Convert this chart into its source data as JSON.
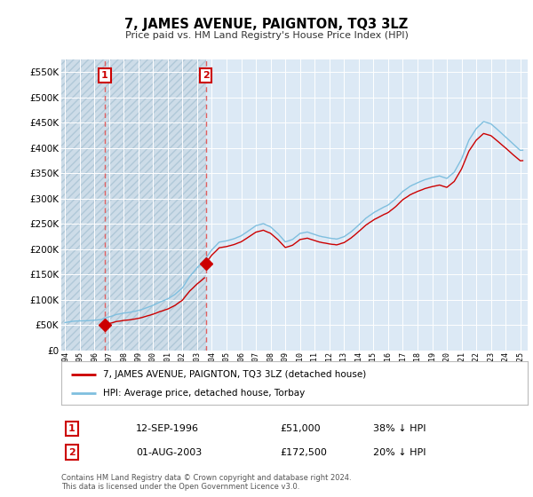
{
  "title": "7, JAMES AVENUE, PAIGNTON, TQ3 3LZ",
  "subtitle": "Price paid vs. HM Land Registry's House Price Index (HPI)",
  "background_color": "#ffffff",
  "plot_bg_color": "#dce9f5",
  "grid_color": "#ffffff",
  "ylim": [
    0,
    575000
  ],
  "yticks": [
    0,
    50000,
    100000,
    150000,
    200000,
    250000,
    300000,
    350000,
    400000,
    450000,
    500000,
    550000
  ],
  "ytick_labels": [
    "£0",
    "£50K",
    "£100K",
    "£150K",
    "£200K",
    "£250K",
    "£300K",
    "£350K",
    "£400K",
    "£450K",
    "£500K",
    "£550K"
  ],
  "sale1_date": 1996.71,
  "sale1_price": 51000,
  "sale2_date": 2003.58,
  "sale2_price": 172500,
  "legend_line1": "7, JAMES AVENUE, PAIGNTON, TQ3 3LZ (detached house)",
  "legend_line2": "HPI: Average price, detached house, Torbay",
  "annotation1_date": "12-SEP-1996",
  "annotation1_price": "£51,000",
  "annotation1_hpi": "38% ↓ HPI",
  "annotation2_date": "01-AUG-2003",
  "annotation2_price": "£172,500",
  "annotation2_hpi": "20% ↓ HPI",
  "footer": "Contains HM Land Registry data © Crown copyright and database right 2024.\nThis data is licensed under the Open Government Licence v3.0.",
  "hpi_color": "#7fbfdf",
  "sale_color": "#cc0000",
  "vline_color": "#e06060",
  "marker_color": "#cc0000",
  "box_color": "#cc0000",
  "xlim": [
    1993.75,
    2025.5
  ],
  "xticks": [
    1994,
    1995,
    1996,
    1997,
    1998,
    1999,
    2000,
    2001,
    2002,
    2003,
    2004,
    2005,
    2006,
    2007,
    2008,
    2009,
    2010,
    2011,
    2012,
    2013,
    2014,
    2015,
    2016,
    2017,
    2018,
    2019,
    2020,
    2021,
    2022,
    2023,
    2024,
    2025
  ]
}
